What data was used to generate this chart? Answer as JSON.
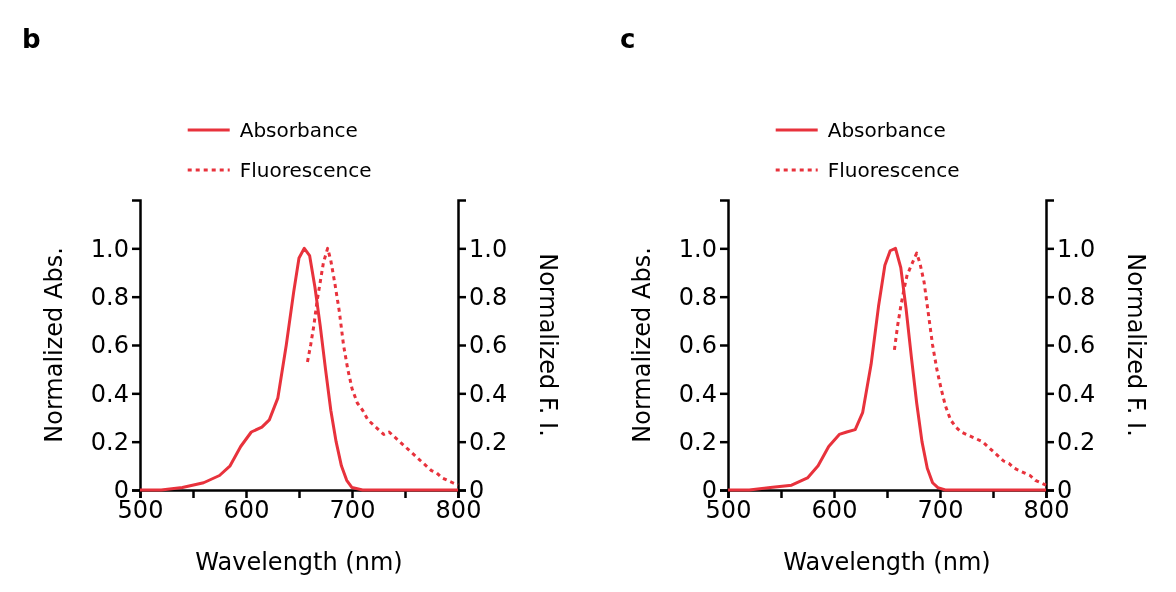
{
  "chart_data": [
    {
      "type": "line",
      "title": "b",
      "xlabel": "Wavelength (nm)",
      "ylabel": "Normalized Abs.",
      "y2label": "Normalized F. I.",
      "xlim": [
        500,
        800
      ],
      "xticks": [
        500,
        {
          "value": 550,
          "label": null
        },
        600,
        {
          "value": 650,
          "label": null
        },
        700,
        {
          "value": 750,
          "label": null
        },
        800
      ],
      "ylim": [
        0,
        1.2
      ],
      "yticks": [
        0,
        0.2,
        0.4,
        0.6,
        0.8,
        {
          "value": 1.0,
          "label": "1.0"
        }
      ],
      "y2lim": [
        0,
        1.2
      ],
      "y2ticks": [
        0,
        0.2,
        0.4,
        0.6,
        0.8,
        {
          "value": 1.0,
          "label": "1.0"
        }
      ],
      "legend": "top",
      "grid": false,
      "series": [
        {
          "name": "Absorbance",
          "color": "#e8323c",
          "line_style": "solid",
          "x": [
            500,
            520,
            540,
            560,
            575,
            585,
            595,
            605,
            615,
            622,
            630,
            638,
            645,
            650,
            655,
            660,
            665,
            670,
            675,
            680,
            685,
            690,
            695,
            700,
            710,
            730,
            760,
            800
          ],
          "values": [
            0,
            0,
            0.01,
            0.03,
            0.06,
            0.1,
            0.18,
            0.24,
            0.26,
            0.29,
            0.38,
            0.6,
            0.82,
            0.96,
            1.0,
            0.97,
            0.84,
            0.68,
            0.5,
            0.33,
            0.2,
            0.1,
            0.04,
            0.01,
            0,
            0,
            0,
            0
          ]
        },
        {
          "name": "Fluorescence",
          "color": "#e8323c",
          "line_style": "dotted",
          "x": [
            658,
            661,
            664,
            667,
            670,
            673,
            677,
            680,
            684,
            688,
            692,
            696,
            700,
            705,
            710,
            715,
            720,
            725,
            730,
            735,
            740,
            745,
            750,
            755,
            760,
            765,
            770,
            775,
            780,
            785,
            790,
            795,
            800
          ],
          "values": [
            0.53,
            0.6,
            0.68,
            0.78,
            0.86,
            0.94,
            1.0,
            0.95,
            0.85,
            0.74,
            0.6,
            0.5,
            0.42,
            0.36,
            0.33,
            0.29,
            0.27,
            0.25,
            0.23,
            0.24,
            0.22,
            0.2,
            0.18,
            0.16,
            0.14,
            0.12,
            0.1,
            0.08,
            0.07,
            0.05,
            0.04,
            0.03,
            0.02
          ]
        }
      ]
    },
    {
      "type": "line",
      "title": "c",
      "xlabel": "Wavelength (nm)",
      "ylabel": "Normalized Abs.",
      "y2label": "Normalized F. I.",
      "xlim": [
        500,
        800
      ],
      "xticks": [
        500,
        {
          "value": 550,
          "label": null
        },
        600,
        {
          "value": 650,
          "label": null
        },
        700,
        {
          "value": 750,
          "label": null
        },
        800
      ],
      "ylim": [
        0,
        1.2
      ],
      "yticks": [
        0,
        0.2,
        0.4,
        0.6,
        0.8,
        {
          "value": 1.0,
          "label": "1.0"
        }
      ],
      "y2lim": [
        0,
        1.2
      ],
      "y2ticks": [
        0,
        0.2,
        0.4,
        0.6,
        0.8,
        {
          "value": 1.0,
          "label": "1.0"
        }
      ],
      "legend": "top",
      "grid": false,
      "series": [
        {
          "name": "Absorbance",
          "color": "#e8323c",
          "line_style": "solid",
          "x": [
            500,
            520,
            540,
            560,
            575,
            585,
            595,
            605,
            612,
            620,
            627,
            635,
            642,
            648,
            653,
            658,
            663,
            668,
            673,
            678,
            683,
            688,
            693,
            698,
            705,
            720,
            760,
            800
          ],
          "values": [
            0,
            0,
            0.01,
            0.02,
            0.05,
            0.1,
            0.18,
            0.23,
            0.24,
            0.25,
            0.32,
            0.52,
            0.76,
            0.93,
            0.99,
            1.0,
            0.92,
            0.75,
            0.55,
            0.36,
            0.2,
            0.09,
            0.03,
            0.01,
            0,
            0,
            0,
            0
          ]
        },
        {
          "name": "Fluorescence",
          "color": "#e8323c",
          "line_style": "dotted",
          "x": [
            657,
            660,
            663,
            666,
            669,
            672,
            675,
            678,
            681,
            685,
            689,
            693,
            697,
            701,
            705,
            710,
            715,
            720,
            725,
            730,
            735,
            740,
            745,
            750,
            755,
            760,
            765,
            770,
            775,
            780,
            785,
            790,
            795,
            800
          ],
          "values": [
            0.58,
            0.68,
            0.76,
            0.83,
            0.89,
            0.92,
            0.95,
            0.98,
            0.94,
            0.86,
            0.73,
            0.6,
            0.5,
            0.42,
            0.35,
            0.29,
            0.26,
            0.24,
            0.23,
            0.22,
            0.21,
            0.2,
            0.18,
            0.16,
            0.14,
            0.12,
            0.11,
            0.09,
            0.08,
            0.07,
            0.06,
            0.04,
            0.03,
            0.02
          ]
        }
      ]
    }
  ]
}
